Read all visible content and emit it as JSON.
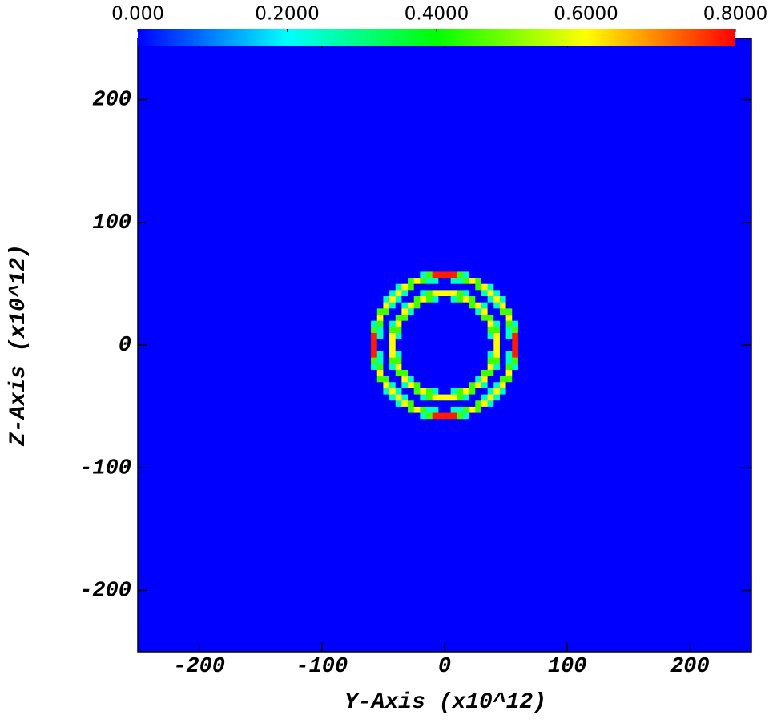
{
  "chart_data": {
    "type": "heatmap",
    "x_label": "Y-Axis (x10^12)",
    "y_label": "Z-Axis (x10^12)",
    "xlim": [
      -250,
      250
    ],
    "ylim": [
      -250,
      250
    ],
    "xticks": [
      -200,
      -100,
      0,
      100,
      200
    ],
    "yticks": [
      -200,
      -100,
      0,
      100,
      200
    ],
    "zlim": [
      0,
      0.8
    ],
    "zticks": [
      {
        "value": 0,
        "label": "0.000"
      },
      {
        "value": 0.2,
        "label": "0.2000"
      },
      {
        "value": 0.4,
        "label": "0.4000"
      },
      {
        "value": 0.6,
        "label": "0.6000"
      },
      {
        "value": 0.8,
        "label": "0.8000"
      }
    ],
    "colormap": [
      "#0000ff",
      "#00ffff",
      "#00ff00",
      "#ffff00",
      "#ff0000"
    ],
    "x_bins": [
      -65,
      -60,
      -55,
      -50,
      -45,
      -40,
      -35,
      -30,
      -25,
      -20,
      -15,
      -10,
      -5,
      0,
      5,
      10,
      15,
      20,
      25,
      30,
      35,
      40,
      45,
      50,
      55,
      60,
      65
    ],
    "y_bins": [
      -65,
      -60,
      -55,
      -50,
      -45,
      -40,
      -35,
      -30,
      -25,
      -20,
      -15,
      -10,
      -5,
      0,
      5,
      10,
      15,
      20,
      25,
      30,
      35,
      40,
      45,
      50,
      55,
      60,
      65
    ],
    "z": [
      [
        0,
        0,
        0,
        0,
        0,
        0,
        0,
        0,
        0,
        0,
        0,
        0,
        0,
        0,
        0,
        0,
        0,
        0,
        0,
        0,
        0,
        0,
        0,
        0,
        0,
        0
      ],
      [
        0,
        0,
        0,
        0,
        0,
        0,
        0,
        0,
        0,
        0.25,
        0.45,
        0.78,
        0.78,
        0.78,
        0.78,
        0.45,
        0.25,
        0,
        0,
        0,
        0,
        0,
        0,
        0,
        0,
        0
      ],
      [
        0,
        0,
        0,
        0,
        0,
        0,
        0,
        0.45,
        0.6,
        0.45,
        0.25,
        0.25,
        0,
        0,
        0.25,
        0.25,
        0.45,
        0.6,
        0.45,
        0,
        0,
        0,
        0,
        0,
        0,
        0
      ],
      [
        0,
        0,
        0,
        0,
        0,
        0.25,
        0.6,
        0.45,
        0,
        0,
        0,
        0,
        0,
        0,
        0,
        0,
        0,
        0,
        0.45,
        0.6,
        0.25,
        0,
        0,
        0,
        0,
        0
      ],
      [
        0,
        0,
        0,
        0,
        0.25,
        0.6,
        0.25,
        0,
        0,
        0.25,
        0.45,
        0.6,
        0.6,
        0.6,
        0.6,
        0.45,
        0.25,
        0,
        0,
        0.25,
        0.6,
        0.25,
        0,
        0,
        0,
        0
      ],
      [
        0,
        0,
        0,
        0.25,
        0.6,
        0.25,
        0,
        0,
        0.45,
        0.6,
        0.45,
        0.25,
        0,
        0,
        0.25,
        0.45,
        0.6,
        0.45,
        0,
        0,
        0.25,
        0.6,
        0.25,
        0,
        0,
        0
      ],
      [
        0,
        0,
        0,
        0.6,
        0.25,
        0,
        0.25,
        0.6,
        0.45,
        0,
        0,
        0,
        0,
        0,
        0,
        0,
        0,
        0.45,
        0.6,
        0.25,
        0,
        0.25,
        0.6,
        0,
        0,
        0
      ],
      [
        0,
        0,
        0.45,
        0.45,
        0,
        0,
        0.6,
        0.25,
        0,
        0,
        0,
        0,
        0,
        0,
        0,
        0,
        0,
        0,
        0.25,
        0.6,
        0,
        0,
        0.45,
        0.45,
        0,
        0
      ],
      [
        0,
        0,
        0.6,
        0,
        0,
        0.45,
        0.45,
        0,
        0,
        0,
        0,
        0,
        0,
        0,
        0,
        0,
        0,
        0,
        0,
        0.45,
        0.45,
        0,
        0,
        0.6,
        0,
        0
      ],
      [
        0,
        0.25,
        0.45,
        0,
        0.25,
        0.6,
        0,
        0,
        0,
        0,
        0,
        0,
        0,
        0,
        0,
        0,
        0,
        0,
        0,
        0,
        0.6,
        0.25,
        0,
        0.45,
        0.25,
        0
      ],
      [
        0,
        0.45,
        0.25,
        0,
        0.45,
        0.45,
        0,
        0,
        0,
        0,
        0,
        0,
        0,
        0,
        0,
        0,
        0,
        0,
        0,
        0,
        0.45,
        0.45,
        0,
        0.25,
        0.45,
        0
      ],
      [
        0,
        0.78,
        0.25,
        0,
        0.6,
        0.25,
        0,
        0,
        0,
        0,
        0,
        0,
        0,
        0,
        0,
        0,
        0,
        0,
        0,
        0,
        0.25,
        0.6,
        0,
        0.25,
        0.78,
        0
      ],
      [
        0,
        0.78,
        0,
        0,
        0.6,
        0,
        0,
        0,
        0,
        0,
        0,
        0,
        0,
        0,
        0,
        0,
        0,
        0,
        0,
        0,
        0,
        0.6,
        0,
        0,
        0.78,
        0
      ],
      [
        0,
        0.78,
        0,
        0,
        0.6,
        0,
        0,
        0,
        0,
        0,
        0,
        0,
        0,
        0,
        0,
        0,
        0,
        0,
        0,
        0,
        0,
        0.6,
        0,
        0,
        0.78,
        0
      ],
      [
        0,
        0.78,
        0.25,
        0,
        0.6,
        0.25,
        0,
        0,
        0,
        0,
        0,
        0,
        0,
        0,
        0,
        0,
        0,
        0,
        0,
        0,
        0.25,
        0.6,
        0,
        0.25,
        0.78,
        0
      ],
      [
        0,
        0.45,
        0.25,
        0,
        0.45,
        0.45,
        0,
        0,
        0,
        0,
        0,
        0,
        0,
        0,
        0,
        0,
        0,
        0,
        0,
        0,
        0.45,
        0.45,
        0,
        0.25,
        0.45,
        0
      ],
      [
        0,
        0.25,
        0.45,
        0,
        0.25,
        0.6,
        0,
        0,
        0,
        0,
        0,
        0,
        0,
        0,
        0,
        0,
        0,
        0,
        0,
        0,
        0.6,
        0.25,
        0,
        0.45,
        0.25,
        0
      ],
      [
        0,
        0,
        0.6,
        0,
        0,
        0.45,
        0.45,
        0,
        0,
        0,
        0,
        0,
        0,
        0,
        0,
        0,
        0,
        0,
        0,
        0.45,
        0.45,
        0,
        0,
        0.6,
        0,
        0
      ],
      [
        0,
        0,
        0.45,
        0.45,
        0,
        0,
        0.6,
        0.25,
        0,
        0,
        0,
        0,
        0,
        0,
        0,
        0,
        0,
        0,
        0.25,
        0.6,
        0,
        0,
        0.45,
        0.45,
        0,
        0
      ],
      [
        0,
        0,
        0,
        0.6,
        0.25,
        0,
        0.25,
        0.6,
        0.45,
        0,
        0,
        0,
        0,
        0,
        0,
        0,
        0,
        0.45,
        0.6,
        0.25,
        0,
        0.25,
        0.6,
        0,
        0,
        0
      ],
      [
        0,
        0,
        0,
        0.25,
        0.6,
        0.25,
        0,
        0,
        0.45,
        0.6,
        0.45,
        0.25,
        0,
        0,
        0.25,
        0.45,
        0.6,
        0.45,
        0,
        0,
        0.25,
        0.6,
        0.25,
        0,
        0,
        0
      ],
      [
        0,
        0,
        0,
        0,
        0.25,
        0.6,
        0.25,
        0,
        0,
        0.25,
        0.45,
        0.6,
        0.6,
        0.6,
        0.6,
        0.45,
        0.25,
        0,
        0,
        0.25,
        0.6,
        0.25,
        0,
        0,
        0,
        0
      ],
      [
        0,
        0,
        0,
        0,
        0,
        0.25,
        0.6,
        0.45,
        0,
        0,
        0,
        0,
        0,
        0,
        0,
        0,
        0,
        0,
        0.45,
        0.6,
        0.25,
        0,
        0,
        0,
        0,
        0
      ],
      [
        0,
        0,
        0,
        0,
        0,
        0,
        0,
        0.45,
        0.6,
        0.45,
        0.25,
        0.25,
        0,
        0,
        0.25,
        0.25,
        0.45,
        0.6,
        0.45,
        0,
        0,
        0,
        0,
        0,
        0,
        0
      ],
      [
        0,
        0,
        0,
        0,
        0,
        0,
        0,
        0,
        0,
        0.25,
        0.45,
        0.78,
        0.78,
        0.78,
        0.78,
        0.45,
        0.25,
        0,
        0,
        0,
        0,
        0,
        0,
        0,
        0,
        0
      ],
      [
        0,
        0,
        0,
        0,
        0,
        0,
        0,
        0,
        0,
        0,
        0,
        0,
        0,
        0,
        0,
        0,
        0,
        0,
        0,
        0,
        0,
        0,
        0,
        0,
        0,
        0
      ]
    ]
  }
}
